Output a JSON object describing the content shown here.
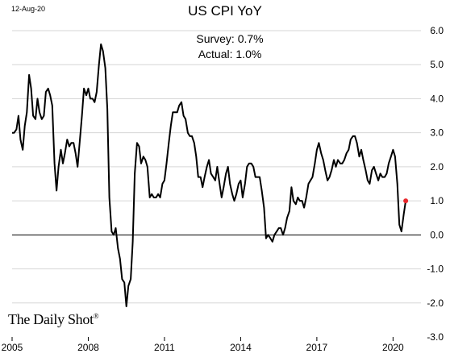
{
  "header": {
    "date": "12-Aug-20",
    "title": "US CPI YoY"
  },
  "annotations": {
    "survey_label": "Survey:",
    "survey_value": "0.7%",
    "actual_label": "Actual:",
    "actual_value": "1.0%"
  },
  "branding": {
    "text": "The Daily Shot",
    "mark": "®"
  },
  "colors": {
    "line": "#000000",
    "highlight_point": "#e8262a",
    "zero_line": "#000000",
    "grid": "#d6d6d6"
  },
  "chart_data": {
    "type": "line",
    "title": "US CPI YoY",
    "xlabel": "",
    "ylabel": "",
    "x_ticks": [
      "2005",
      "2008",
      "2011",
      "2014",
      "2017",
      "2020"
    ],
    "y_ticks": [
      "6.0",
      "5.0",
      "4.0",
      "3.0",
      "2.0",
      "1.0",
      "0.0",
      "-1.0",
      "-2.0",
      "-3.0"
    ],
    "xlim": [
      2005.0,
      2021.1
    ],
    "ylim": [
      -3.0,
      6.0
    ],
    "grid": true,
    "y_axis_position": "right",
    "series": [
      {
        "x": [
          2005.0,
          2005.08,
          2005.17,
          2005.25,
          2005.33,
          2005.42,
          2005.5,
          2005.58,
          2005.67,
          2005.75,
          2005.83,
          2005.92,
          2006.0,
          2006.08,
          2006.17,
          2006.25,
          2006.33,
          2006.42,
          2006.5,
          2006.58,
          2006.67,
          2006.75,
          2006.83,
          2006.92,
          2007.0,
          2007.08,
          2007.17,
          2007.25,
          2007.33,
          2007.42,
          2007.5,
          2007.58,
          2007.67,
          2007.75,
          2007.83,
          2007.92,
          2008.0,
          2008.08,
          2008.17,
          2008.25,
          2008.33,
          2008.42,
          2008.5,
          2008.58,
          2008.67,
          2008.75,
          2008.83,
          2008.92,
          2009.0,
          2009.08,
          2009.17,
          2009.25,
          2009.33,
          2009.42,
          2009.5,
          2009.58,
          2009.67,
          2009.75,
          2009.83,
          2009.92,
          2010.0,
          2010.08,
          2010.17,
          2010.25,
          2010.33,
          2010.42,
          2010.5,
          2010.58,
          2010.67,
          2010.75,
          2010.83,
          2010.92,
          2011.0,
          2011.08,
          2011.17,
          2011.25,
          2011.33,
          2011.42,
          2011.5,
          2011.58,
          2011.67,
          2011.75,
          2011.83,
          2011.92,
          2012.0,
          2012.08,
          2012.17,
          2012.25,
          2012.33,
          2012.42,
          2012.5,
          2012.58,
          2012.67,
          2012.75,
          2012.83,
          2012.92,
          2013.0,
          2013.08,
          2013.17,
          2013.25,
          2013.33,
          2013.42,
          2013.5,
          2013.58,
          2013.67,
          2013.75,
          2013.83,
          2013.92,
          2014.0,
          2014.08,
          2014.17,
          2014.25,
          2014.33,
          2014.42,
          2014.5,
          2014.58,
          2014.67,
          2014.75,
          2014.83,
          2014.92,
          2015.0,
          2015.08,
          2015.17,
          2015.25,
          2015.33,
          2015.42,
          2015.5,
          2015.58,
          2015.67,
          2015.75,
          2015.83,
          2015.92,
          2016.0,
          2016.08,
          2016.17,
          2016.25,
          2016.33,
          2016.42,
          2016.5,
          2016.58,
          2016.67,
          2016.75,
          2016.83,
          2016.92,
          2017.0,
          2017.08,
          2017.17,
          2017.25,
          2017.33,
          2017.42,
          2017.5,
          2017.58,
          2017.67,
          2017.75,
          2017.83,
          2017.92,
          2018.0,
          2018.08,
          2018.17,
          2018.25,
          2018.33,
          2018.42,
          2018.5,
          2018.58,
          2018.67,
          2018.75,
          2018.83,
          2018.92,
          2019.0,
          2019.08,
          2019.17,
          2019.25,
          2019.33,
          2019.42,
          2019.5,
          2019.58,
          2019.67,
          2019.75,
          2019.83,
          2019.92,
          2020.0,
          2020.08,
          2020.17,
          2020.25,
          2020.33,
          2020.42,
          2020.5
        ],
        "values": [
          3.0,
          3.0,
          3.1,
          3.5,
          2.8,
          2.5,
          3.2,
          3.6,
          4.7,
          4.3,
          3.5,
          3.4,
          4.0,
          3.6,
          3.4,
          3.5,
          4.2,
          4.3,
          4.1,
          3.8,
          2.1,
          1.3,
          2.0,
          2.5,
          2.1,
          2.4,
          2.8,
          2.6,
          2.7,
          2.7,
          2.4,
          2.0,
          2.8,
          3.5,
          4.3,
          4.1,
          4.3,
          4.0,
          4.0,
          3.9,
          4.2,
          5.0,
          5.6,
          5.4,
          4.9,
          3.7,
          1.1,
          0.1,
          0.0,
          0.2,
          -0.4,
          -0.7,
          -1.3,
          -1.4,
          -2.1,
          -1.5,
          -1.3,
          -0.2,
          1.8,
          2.7,
          2.6,
          2.1,
          2.3,
          2.2,
          2.0,
          1.1,
          1.2,
          1.1,
          1.1,
          1.2,
          1.1,
          1.5,
          1.6,
          2.1,
          2.7,
          3.2,
          3.6,
          3.6,
          3.6,
          3.8,
          3.9,
          3.5,
          3.4,
          3.0,
          2.9,
          2.9,
          2.7,
          2.3,
          1.7,
          1.7,
          1.4,
          1.7,
          2.0,
          2.2,
          1.8,
          1.7,
          1.6,
          2.0,
          1.5,
          1.1,
          1.4,
          1.8,
          2.0,
          1.5,
          1.2,
          1.0,
          1.2,
          1.5,
          1.6,
          1.1,
          1.5,
          2.0,
          2.1,
          2.1,
          2.0,
          1.7,
          1.7,
          1.7,
          1.3,
          0.8,
          -0.1,
          0.0,
          -0.1,
          -0.2,
          0.0,
          0.1,
          0.2,
          0.2,
          0.0,
          0.2,
          0.5,
          0.7,
          1.4,
          1.0,
          0.9,
          1.1,
          1.0,
          1.0,
          0.8,
          1.1,
          1.5,
          1.6,
          1.7,
          2.1,
          2.5,
          2.7,
          2.4,
          2.2,
          1.9,
          1.6,
          1.7,
          1.9,
          2.2,
          2.0,
          2.2,
          2.1,
          2.1,
          2.2,
          2.4,
          2.5,
          2.8,
          2.9,
          2.9,
          2.7,
          2.3,
          2.5,
          2.2,
          1.9,
          1.6,
          1.5,
          1.9,
          2.0,
          1.8,
          1.6,
          1.8,
          1.7,
          1.7,
          1.8,
          2.1,
          2.3,
          2.5,
          2.3,
          1.5,
          0.3,
          0.1,
          0.6,
          1.0
        ]
      }
    ],
    "highlight": {
      "x": 2020.5,
      "y": 1.0
    }
  }
}
